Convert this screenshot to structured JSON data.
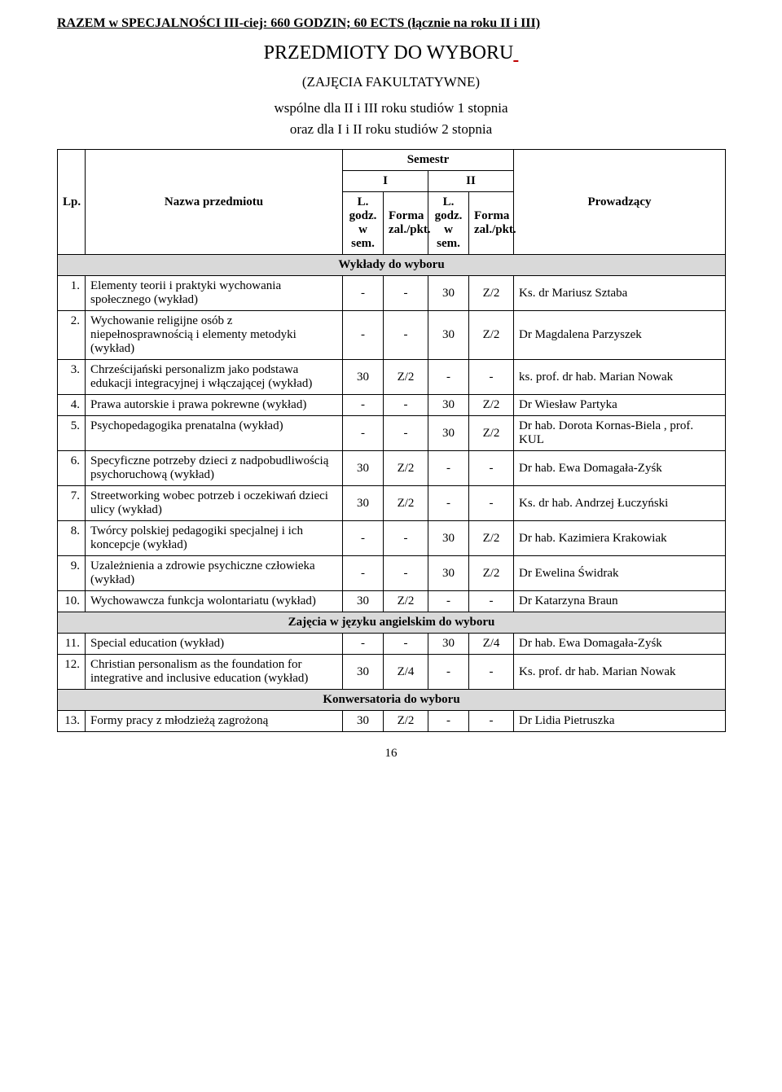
{
  "headline": "RAZEM w SPECJALNOŚCI  III-ciej: 660 GODZIN; 60 ECTS (łącznie na roku II i III)",
  "section_title": "PRZEDMIOTY DO WYBORU",
  "section_sub": "(ZAJĘCIA FAKULTATYWNE)",
  "section_line1": "wspólne dla II i III roku studiów 1 stopnia",
  "section_line2": "oraz dla I i II roku studiów 2 stopnia",
  "table": {
    "headers": {
      "lp": "Lp.",
      "name": "Nazwa przedmiotu",
      "semestr": "Semestr",
      "sem1": "I",
      "sem2": "II",
      "godz": "L. godz. w sem.",
      "forma1": "Forma zal./pkt.",
      "forma2": "Forma zal./pkt.",
      "prov": "Prowadzący"
    },
    "section_a": "Wykłady do wyboru",
    "rows_a": [
      {
        "lp": "1.",
        "name": "Elementy teorii i praktyki wychowania społecznego (wykład)",
        "g1": "-",
        "f1": "-",
        "g2": "30",
        "f2": "Z/2",
        "prov": "Ks. dr Mariusz Sztaba"
      },
      {
        "lp": "2.",
        "name": "Wychowanie religijne osób z niepełnosprawnością i elementy metodyki (wykład)",
        "g1": "-",
        "f1": "-",
        "g2": "30",
        "f2": "Z/2",
        "prov": "Dr Magdalena Parzyszek"
      },
      {
        "lp": "3.",
        "name": "Chrześcijański personalizm jako podstawa edukacji integracyjnej i włączającej (wykład)",
        "g1": "30",
        "f1": "Z/2",
        "g2": "-",
        "f2": "-",
        "prov": "ks. prof. dr hab. Marian Nowak"
      },
      {
        "lp": "4.",
        "name": "Prawa autorskie i prawa pokrewne (wykład)",
        "g1": "-",
        "f1": "-",
        "g2": "30",
        "f2": "Z/2",
        "prov": "Dr Wiesław Partyka"
      },
      {
        "lp": "5.",
        "name": "Psychopedagogika prenatalna (wykład)",
        "g1": "-",
        "f1": "-",
        "g2": "30",
        "f2": "Z/2",
        "prov": "Dr hab. Dorota Kornas-Biela , prof. KUL"
      },
      {
        "lp": "6.",
        "name": "Specyficzne potrzeby dzieci z nadpobudliwością psychoruchową (wykład)",
        "g1": "30",
        "f1": "Z/2",
        "g2": "-",
        "f2": "-",
        "prov": "Dr hab. Ewa Domagała-Zyśk"
      },
      {
        "lp": "7.",
        "name": "Streetworking wobec potrzeb i oczekiwań dzieci ulicy (wykład)",
        "g1": "30",
        "f1": "Z/2",
        "g2": "-",
        "f2": "-",
        "prov": "Ks. dr  hab. Andrzej Łuczyński"
      },
      {
        "lp": "8.",
        "name": "Twórcy polskiej pedagogiki specjalnej i ich koncepcje (wykład)",
        "g1": "-",
        "f1": "-",
        "g2": "30",
        "f2": "Z/2",
        "prov": "Dr hab. Kazimiera Krakowiak"
      },
      {
        "lp": "9.",
        "name": "Uzależnienia a zdrowie psychiczne człowieka (wykład)",
        "g1": "-",
        "f1": "-",
        "g2": "30",
        "f2": "Z/2",
        "prov": "Dr Ewelina Świdrak"
      },
      {
        "lp": "10.",
        "name": "Wychowawcza funkcja wolontariatu (wykład)",
        "g1": "30",
        "f1": "Z/2",
        "g2": "-",
        "f2": "-",
        "prov": "Dr Katarzyna Braun"
      }
    ],
    "section_b": "Zajęcia w języku angielskim do wyboru",
    "rows_b": [
      {
        "lp": "11.",
        "name": "Special education (wykład)",
        "g1": "-",
        "f1": "-",
        "g2": "30",
        "f2": "Z/4",
        "prov": "Dr hab. Ewa Domagała-Zyśk"
      },
      {
        "lp": "12.",
        "name": "Christian personalism as the foundation for integrative and inclusive education (wykład)",
        "g1": "30",
        "f1": "Z/4",
        "g2": "-",
        "f2": "-",
        "prov": "Ks. prof. dr hab. Marian Nowak"
      }
    ],
    "section_c": "Konwersatoria do wyboru",
    "rows_c": [
      {
        "lp": "13.",
        "name": "Formy pracy z młodzieżą zagrożoną",
        "g1": "30",
        "f1": "Z/2",
        "g2": "-",
        "f2": "-",
        "prov": "Dr Lidia Pietruszka"
      }
    ]
  },
  "page_number": "16"
}
